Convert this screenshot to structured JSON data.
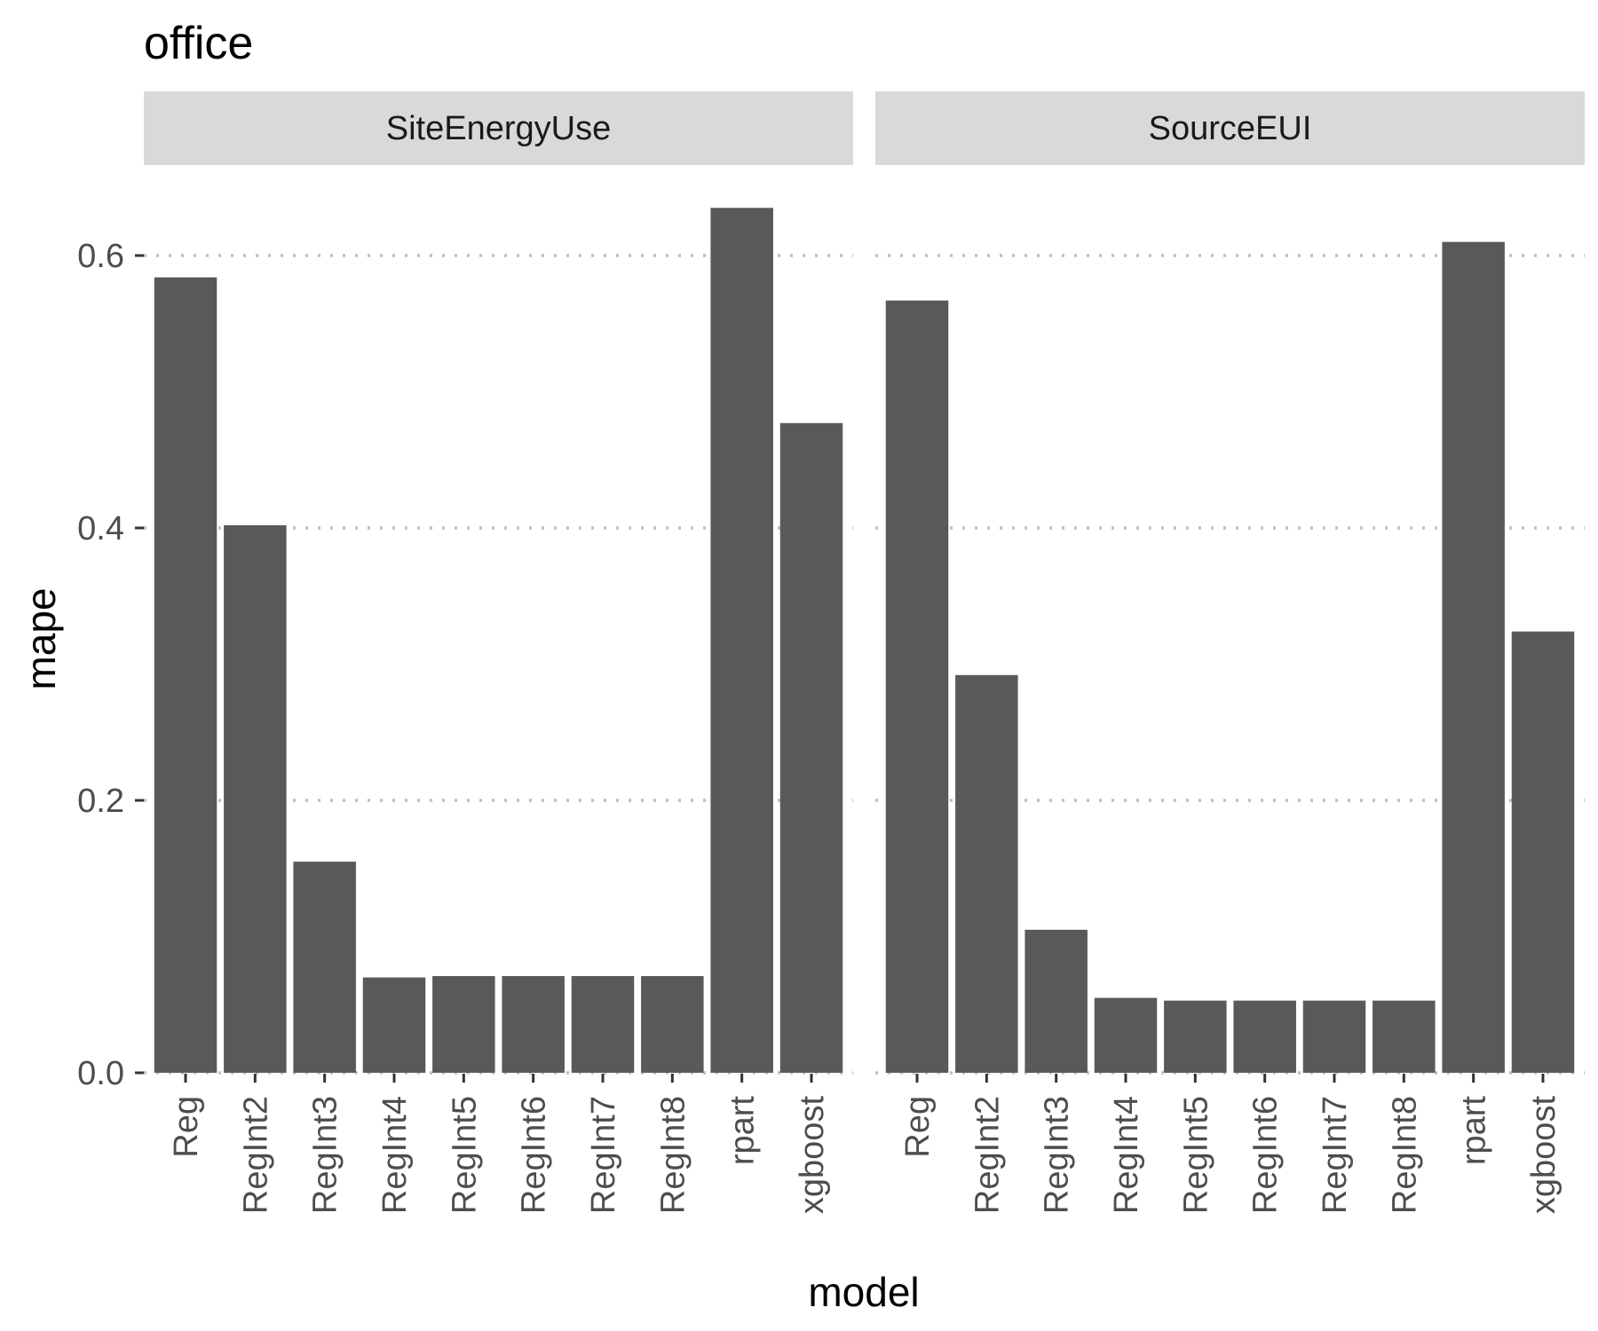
{
  "chart_data": {
    "type": "bar",
    "title": "office",
    "xlabel": "model",
    "ylabel": "mape",
    "ylim": [
      0,
      0.66
    ],
    "yticks": [
      0.0,
      0.2,
      0.4,
      0.6
    ],
    "ytick_labels": [
      "0.0",
      "0.2",
      "0.4",
      "0.6"
    ],
    "grid": "horizontal dotted major lines",
    "categories": [
      "Reg",
      "RegInt2",
      "RegInt3",
      "RegInt4",
      "RegInt5",
      "RegInt6",
      "RegInt7",
      "RegInt8",
      "rpart",
      "xgboost"
    ],
    "facets": [
      {
        "name": "SiteEnergyUse",
        "values": [
          0.584,
          0.402,
          0.155,
          0.07,
          0.071,
          0.071,
          0.071,
          0.071,
          0.635,
          0.477
        ]
      },
      {
        "name": "SourceEUI",
        "values": [
          0.567,
          0.292,
          0.105,
          0.055,
          0.053,
          0.053,
          0.053,
          0.053,
          0.61,
          0.324
        ]
      }
    ]
  },
  "colors": {
    "bar": "#595959",
    "strip_background": "#d9d9d9",
    "gridline": "#bebebe",
    "axis_text": "#4d4d4d",
    "title_text": "#000000"
  }
}
